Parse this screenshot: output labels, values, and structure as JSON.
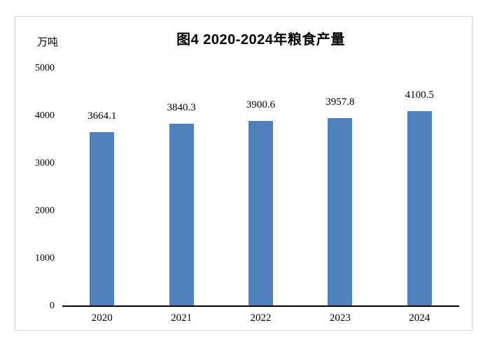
{
  "chart_data": {
    "type": "bar",
    "title": "图4 2020-2024年粮食产量",
    "unit_label": "万吨",
    "categories": [
      "2020",
      "2021",
      "2022",
      "2023",
      "2024"
    ],
    "values": [
      3664.1,
      3840.3,
      3900.6,
      3957.8,
      4100.5
    ],
    "value_labels": [
      "3664.1",
      "3840.3",
      "3900.6",
      "3957.8",
      "4100.5"
    ],
    "series_name": "粮食产量",
    "xlabel": "",
    "ylabel": "万吨",
    "y_ticks": [
      0,
      1000,
      2000,
      3000,
      4000,
      5000
    ],
    "ylim": [
      0,
      5000
    ],
    "grid": false,
    "legend": "none",
    "bar_color": "#4F81BD",
    "axis_color": "#000000",
    "border_color": "#D9D9D9",
    "background_color": "#FFFFFF"
  }
}
